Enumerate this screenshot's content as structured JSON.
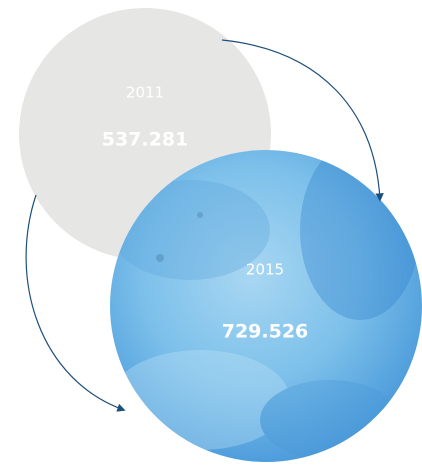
{
  "nodes": [
    {
      "year": "2011",
      "value": "537.281"
    },
    {
      "year": "2015",
      "value": "729.526"
    }
  ]
}
